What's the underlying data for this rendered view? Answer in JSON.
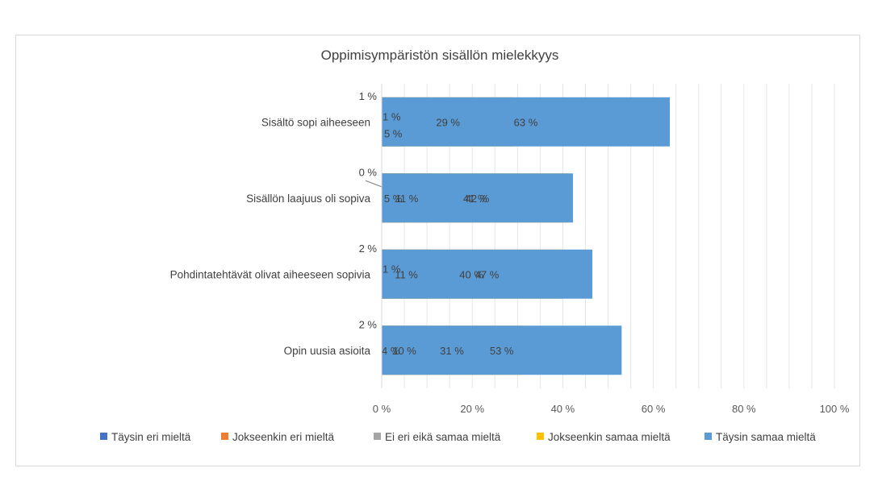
{
  "chart_data": {
    "type": "bar",
    "orientation": "horizontal",
    "stacked": "percent",
    "title": "Oppimisympäristön sisällön mielekkyys",
    "categories": [
      "Sisältö sopi aiheeseen",
      "Sisällön laajuus oli sopiva",
      "Pohdintatehtävät olivat aiheeseen sopivia",
      "Opin uusia asioita"
    ],
    "series": [
      {
        "name": "Täysin eri mieltä",
        "color": "#4472c4",
        "values": [
          1,
          0.4,
          2,
          2
        ],
        "labels": [
          "1 %",
          "0 %",
          "2 %",
          "2 %"
        ]
      },
      {
        "name": "Jokseenkin eri mieltä",
        "color": "#ed7d31",
        "values": [
          1,
          5,
          1,
          4
        ],
        "labels": [
          "1 %",
          "5 %",
          "1 %",
          "4 %"
        ]
      },
      {
        "name": "Ei eri eikä samaa mieltä",
        "color": "#a5a5a5",
        "values": [
          5,
          11,
          11,
          10
        ],
        "labels": [
          "5 %",
          "11 %",
          "11 %",
          "10 %"
        ]
      },
      {
        "name": "Jokseenkin samaa mieltä",
        "color": "#ffc000",
        "values": [
          29,
          41,
          40,
          31
        ],
        "labels": [
          "29 %",
          "41 %",
          "40 %",
          "31 %"
        ]
      },
      {
        "name": "Täysin samaa mieltä",
        "color": "#5b9bd5",
        "values": [
          63,
          42,
          47,
          53
        ],
        "labels": [
          "63 %",
          "42 %",
          "47 %",
          "53 %"
        ]
      }
    ],
    "x_ticks": [
      "0 %",
      "20 %",
      "40 %",
      "60 %",
      "80 %",
      "100 %"
    ],
    "xlim": [
      0,
      100
    ],
    "grid": true,
    "legend_position": "bottom"
  }
}
